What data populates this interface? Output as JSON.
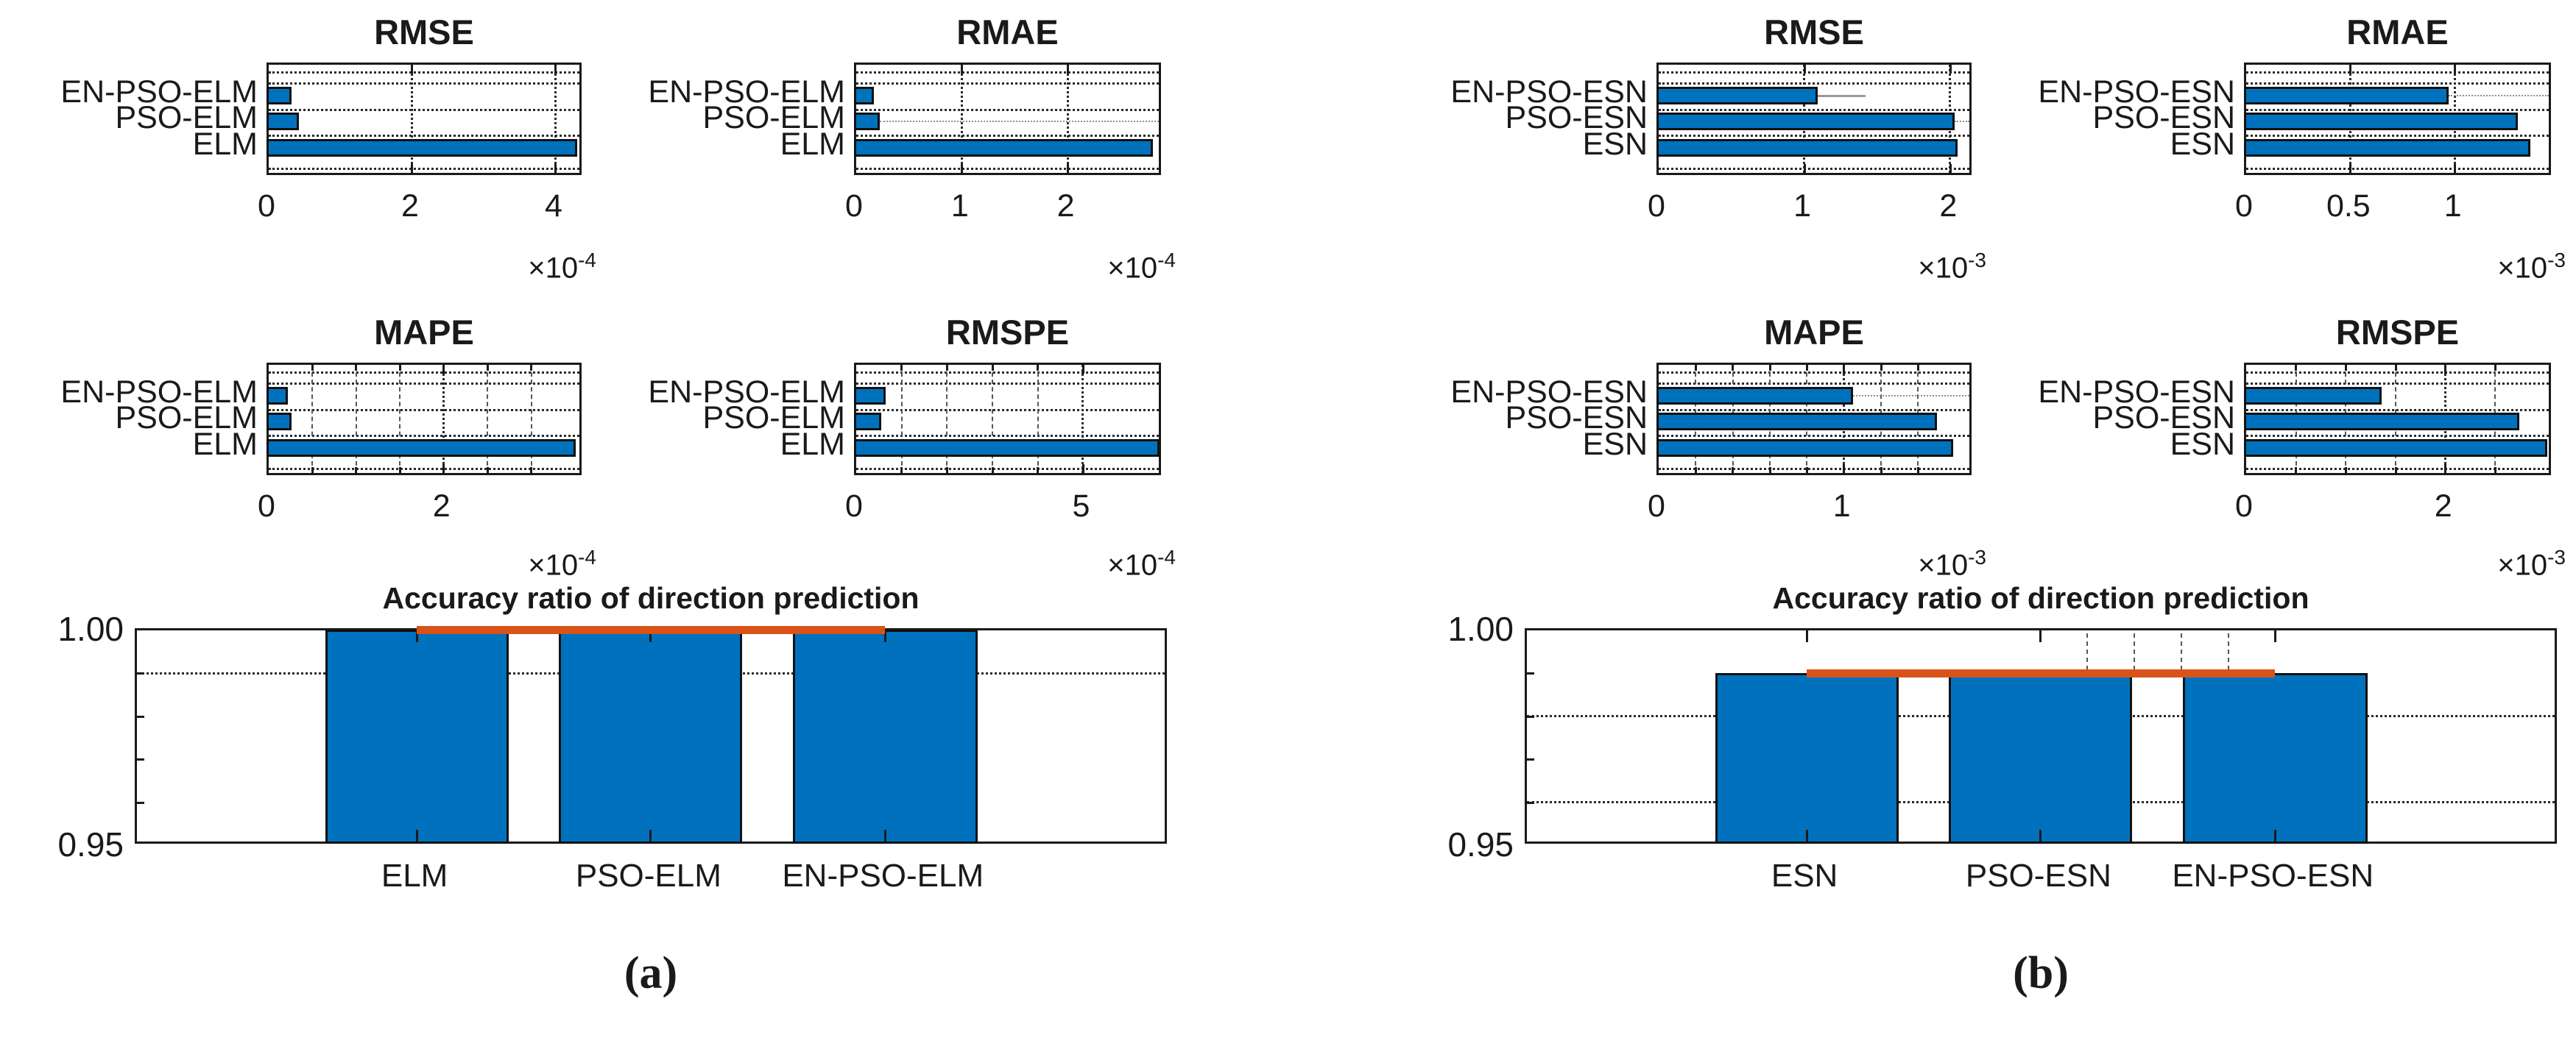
{
  "figure": {
    "captions": {
      "a": "(a)",
      "b": "(b)"
    },
    "colors": {
      "bar_fill": "#0072BD",
      "bar_edge": "#111111",
      "accent_line": "#D95319",
      "grid": "#2a2a2a",
      "background": "#ffffff"
    },
    "chart_data": [
      {
        "id": "a-rmse",
        "panel": "a",
        "type": "barh",
        "title": "RMSE",
        "categories": [
          "EN-PSO-ELM",
          "PSO-ELM",
          "ELM"
        ],
        "values": [
          0.32,
          0.42,
          4.3
        ],
        "xtick_values": [
          0,
          2,
          4
        ],
        "xtick_labels": [
          "0",
          "2",
          "4"
        ],
        "xlim": [
          0,
          4.39
        ],
        "minor_gridlines": [],
        "scale_label": {
          "prefix": "×10",
          "power": "-4"
        },
        "row_lines": [],
        "grid": "on"
      },
      {
        "id": "a-rmae",
        "panel": "a",
        "type": "barh",
        "title": "RMAE",
        "categories": [
          "EN-PSO-ELM",
          "PSO-ELM",
          "ELM"
        ],
        "values": [
          0.17,
          0.22,
          2.8
        ],
        "xtick_values": [
          0,
          1,
          2
        ],
        "xtick_labels": [
          "0",
          "1",
          "2"
        ],
        "xlim": [
          0,
          2.9
        ],
        "minor_gridlines": [],
        "scale_label": {
          "prefix": "×10",
          "power": "-4"
        },
        "row_lines": [
          {
            "row": 1,
            "from": 0.22,
            "to": "max",
            "style": "dotted"
          }
        ],
        "grid": "on"
      },
      {
        "id": "a-mape",
        "panel": "a",
        "type": "barh",
        "title": "MAPE",
        "categories": [
          "EN-PSO-ELM",
          "PSO-ELM",
          "ELM"
        ],
        "values": [
          0.22,
          0.26,
          3.51
        ],
        "xtick_values": [
          0,
          2
        ],
        "xtick_labels": [
          "0",
          "2"
        ],
        "xlim": [
          0,
          3.6
        ],
        "minor_gridlines": [
          0.5,
          1,
          1.5,
          2.5,
          3
        ],
        "scale_label": {
          "prefix": "×10",
          "power": "-4"
        },
        "row_lines": [],
        "grid": "on"
      },
      {
        "id": "a-rmspe",
        "panel": "a",
        "type": "barh",
        "title": "RMSPE",
        "categories": [
          "EN-PSO-ELM",
          "PSO-ELM",
          "ELM"
        ],
        "values": [
          0.65,
          0.55,
          6.68
        ],
        "xtick_values": [
          0,
          5
        ],
        "xtick_labels": [
          "0",
          "5"
        ],
        "xlim": [
          0,
          6.76
        ],
        "minor_gridlines": [
          1,
          2,
          3,
          4
        ],
        "scale_label": {
          "prefix": "×10",
          "power": "-4"
        },
        "row_lines": [],
        "grid": "on"
      },
      {
        "id": "b-rmse",
        "panel": "b",
        "type": "barh",
        "title": "RMSE",
        "categories": [
          "EN-PSO-ESN",
          "PSO-ESN",
          "ESN"
        ],
        "values": [
          1.09,
          2.03,
          2.05
        ],
        "xtick_values": [
          0,
          1,
          2
        ],
        "xtick_labels": [
          "0",
          "1",
          "2"
        ],
        "xlim": [
          0,
          2.16
        ],
        "minor_gridlines": [],
        "scale_label": {
          "prefix": "×10",
          "power": "-3"
        },
        "row_lines": [
          {
            "row": 0,
            "from": 1.09,
            "to": 1.42,
            "style": "solid"
          },
          {
            "row": 1,
            "from": 2.03,
            "to": "max",
            "style": "dotted"
          }
        ],
        "grid": "on"
      },
      {
        "id": "b-rmae",
        "panel": "b",
        "type": "barh",
        "title": "RMAE",
        "categories": [
          "EN-PSO-ESN",
          "PSO-ESN",
          "ESN"
        ],
        "values": [
          0.97,
          1.3,
          1.36
        ],
        "xtick_values": [
          0,
          0.5,
          1
        ],
        "xtick_labels": [
          "0",
          "0.5",
          "1"
        ],
        "xlim": [
          0,
          1.47
        ],
        "minor_gridlines": [],
        "scale_label": {
          "prefix": "×10",
          "power": "-3"
        },
        "row_lines": [
          {
            "row": 0,
            "from": 0.97,
            "to": "max",
            "style": "dotted"
          }
        ],
        "grid": "on"
      },
      {
        "id": "b-mape",
        "panel": "b",
        "type": "barh",
        "title": "MAPE",
        "categories": [
          "EN-PSO-ESN",
          "PSO-ESN",
          "ESN"
        ],
        "values": [
          1.05,
          1.5,
          1.59
        ],
        "xtick_values": [
          0,
          1
        ],
        "xtick_labels": [
          "0",
          "1"
        ],
        "xlim": [
          0,
          1.7
        ],
        "minor_gridlines": [
          0.2,
          0.4,
          0.6,
          0.8,
          1.2,
          1.4
        ],
        "scale_label": {
          "prefix": "×10",
          "power": "-3"
        },
        "row_lines": [
          {
            "row": 0,
            "from": 1.05,
            "to": "max",
            "style": "dotted"
          }
        ],
        "grid": "on"
      },
      {
        "id": "b-rmspe",
        "panel": "b",
        "type": "barh",
        "title": "RMSPE",
        "categories": [
          "EN-PSO-ESN",
          "PSO-ESN",
          "ESN"
        ],
        "values": [
          1.36,
          2.74,
          3.02
        ],
        "xtick_values": [
          0,
          2
        ],
        "xtick_labels": [
          "0",
          "2"
        ],
        "xlim": [
          0,
          3.08
        ],
        "minor_gridlines": [
          0.5,
          1,
          1.5,
          2.5
        ],
        "scale_label": {
          "prefix": "×10",
          "power": "-3"
        },
        "row_lines": [],
        "grid": "on"
      },
      {
        "id": "a-accuracy",
        "panel": "a",
        "type": "bar",
        "title": "Accuracy ratio of direction prediction",
        "categories": [
          "ELM",
          "PSO-ELM",
          "EN-PSO-ELM"
        ],
        "values": [
          1.0,
          1.0,
          1.0
        ],
        "ylim": [
          0.95,
          1.0
        ],
        "ytick_values": [
          1.0,
          0.95
        ],
        "ytick_labels": [
          "1.00",
          "0.95"
        ],
        "gridlines": [
          0.99
        ],
        "accent_line": {
          "value": 1.0,
          "from_bar": 0,
          "to_bar": 2,
          "color": "#D95319"
        },
        "top_dashes": false
      },
      {
        "id": "b-accuracy",
        "panel": "b",
        "type": "bar",
        "title": "Accuracy ratio of direction prediction",
        "categories": [
          "ESN",
          "PSO-ESN",
          "EN-PSO-ESN"
        ],
        "values": [
          0.99,
          0.99,
          0.99
        ],
        "ylim": [
          0.95,
          1.0
        ],
        "ytick_values": [
          1.0,
          0.95
        ],
        "ytick_labels": [
          "1.00",
          "0.95"
        ],
        "gridlines": [
          0.98,
          0.96
        ],
        "accent_line": {
          "value": 0.99,
          "from_bar": 0,
          "to_bar": 2,
          "color": "#D95319"
        },
        "top_dashes": true
      }
    ]
  }
}
